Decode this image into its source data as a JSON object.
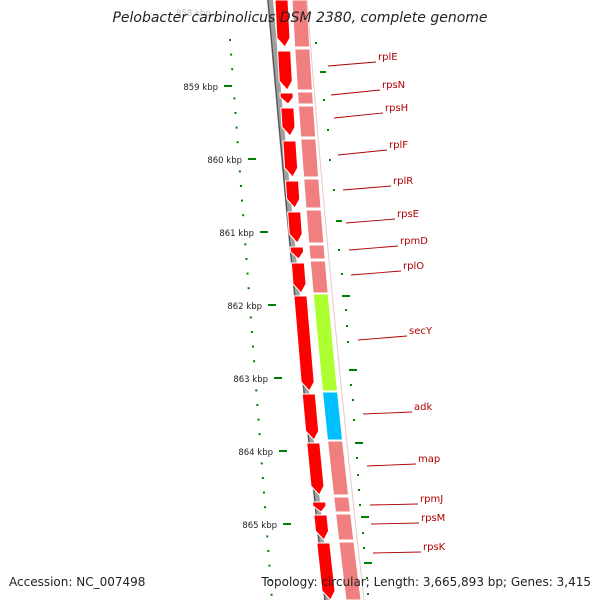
{
  "title": "Pelobacter carbinolicus DSM 2380, complete genome",
  "accession": "Accession: NC_007498",
  "topology": "Topology: circular; Length: 3,665,893 bp; Genes: 3,415",
  "ruler": {
    "labels": [
      "859 kbp",
      "860 kbp",
      "861 kbp",
      "862 kbp",
      "863 kbp",
      "864 kbp",
      "865 kbp"
    ],
    "top_label": "858 kbp"
  },
  "genes": [
    {
      "name": "rplE",
      "color": "#f08080"
    },
    {
      "name": "rpsN",
      "color": "#f08080"
    },
    {
      "name": "rpsH",
      "color": "#f08080"
    },
    {
      "name": "rplF",
      "color": "#f08080"
    },
    {
      "name": "rplR",
      "color": "#f08080"
    },
    {
      "name": "rpsE",
      "color": "#f08080"
    },
    {
      "name": "rpmD",
      "color": "#f08080"
    },
    {
      "name": "rplO",
      "color": "#f08080"
    },
    {
      "name": "secY",
      "color": "#adff2f"
    },
    {
      "name": "adk",
      "color": "#00bfff"
    },
    {
      "name": "map",
      "color": "#f08080"
    },
    {
      "name": "rpmJ",
      "color": "#f08080"
    },
    {
      "name": "rpsM",
      "color": "#f08080"
    },
    {
      "name": "rpsK",
      "color": "#f08080"
    }
  ],
  "colors": {
    "cds": "#ff0000",
    "ribbon": "#f08080",
    "backbone": "#808080",
    "tick": "#008000",
    "label": "#b00000"
  }
}
